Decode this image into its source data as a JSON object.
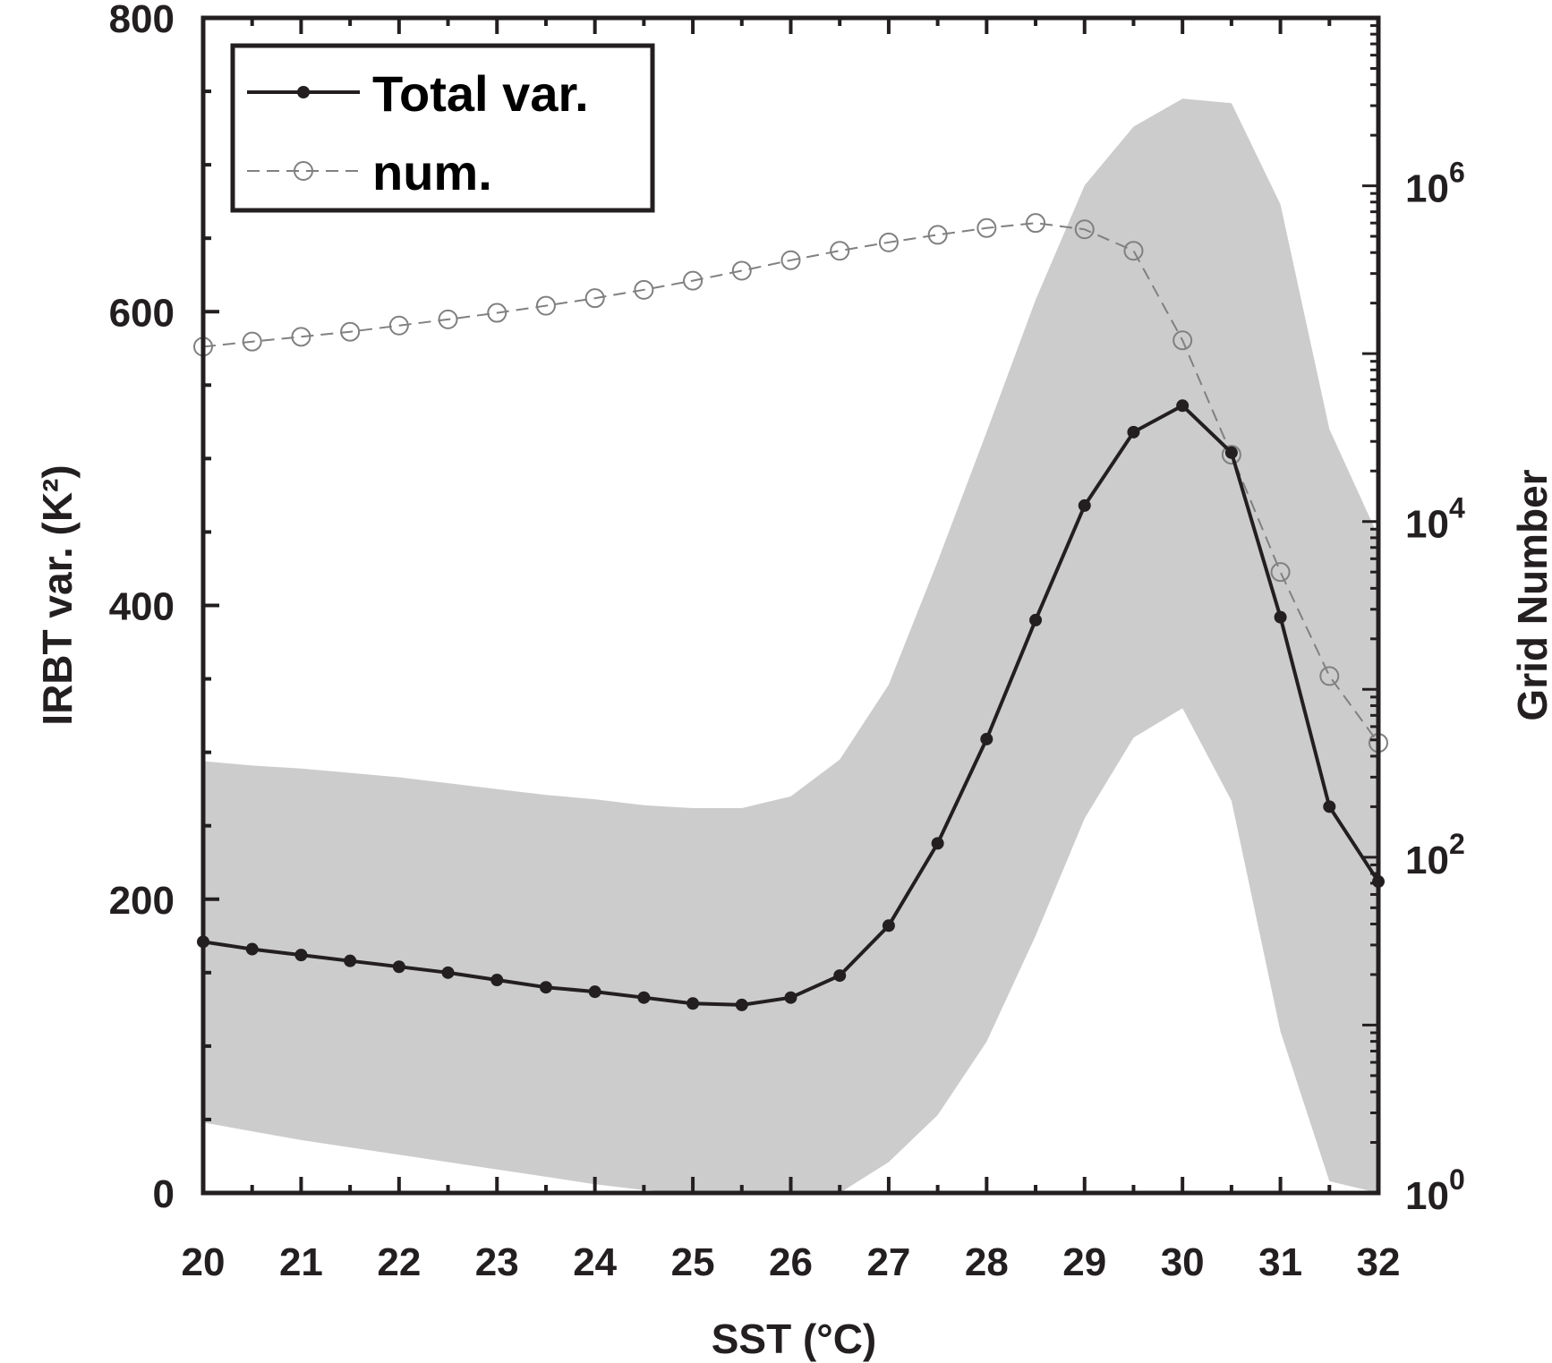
{
  "chart_data": {
    "type": "line",
    "xlabel": "SST (°C)",
    "ylabel": "IRBT var. (K²)",
    "y2label": "Grid Number",
    "xlim": [
      20,
      32
    ],
    "ylim": [
      0,
      800
    ],
    "y2lim": [
      1,
      10000000
    ],
    "y2scale": "log",
    "grid": false,
    "legend": "top-left",
    "x_ticks": [
      "20",
      "21",
      "22",
      "23",
      "24",
      "25",
      "26",
      "27",
      "28",
      "29",
      "30",
      "31",
      "32"
    ],
    "y_ticks": [
      "0",
      "200",
      "400",
      "600",
      "800"
    ],
    "y2_ticks": [
      {
        "value": 1,
        "base": "10",
        "exp": "0"
      },
      {
        "value": 100,
        "base": "10",
        "exp": "2"
      },
      {
        "value": 10000,
        "base": "10",
        "exp": "4"
      },
      {
        "value": 1000000,
        "base": "10",
        "exp": "6"
      }
    ],
    "x": [
      20,
      20.5,
      21,
      21.5,
      22,
      22.5,
      23,
      23.5,
      24,
      24.5,
      25,
      25.5,
      26,
      26.5,
      27,
      27.5,
      28,
      28.5,
      29,
      29.5,
      30,
      30.5,
      31,
      31.5,
      32
    ],
    "series": [
      {
        "name": "Total var.",
        "axis": "left",
        "color": "#231f20",
        "values": [
          171,
          166,
          162,
          158,
          154,
          150,
          145,
          140,
          137,
          133,
          129,
          128,
          133,
          148,
          182,
          238,
          309,
          390,
          468,
          518,
          536,
          504,
          392,
          263,
          212
        ]
      },
      {
        "name": "num.",
        "axis": "right",
        "color": "#808080",
        "values": [
          110000,
          118000,
          126000,
          135000,
          147000,
          160000,
          175000,
          193000,
          214000,
          240000,
          272000,
          312000,
          360000,
          410000,
          460000,
          510000,
          560000,
          600000,
          550000,
          410000,
          120000,
          25000,
          5000,
          1200,
          480
        ]
      }
    ],
    "band": {
      "color": "#cccccc",
      "upper": [
        294,
        291,
        289,
        286,
        283,
        279,
        275,
        271,
        268,
        264,
        262,
        262,
        270,
        295,
        346,
        430,
        518,
        608,
        686,
        726,
        745,
        742,
        673,
        520,
        447
      ],
      "lower": [
        48,
        42,
        36,
        31,
        26,
        21,
        16,
        11,
        6,
        2,
        0,
        0,
        0,
        0,
        21,
        53,
        103,
        175,
        255,
        310,
        330,
        267,
        110,
        8,
        0
      ]
    }
  }
}
